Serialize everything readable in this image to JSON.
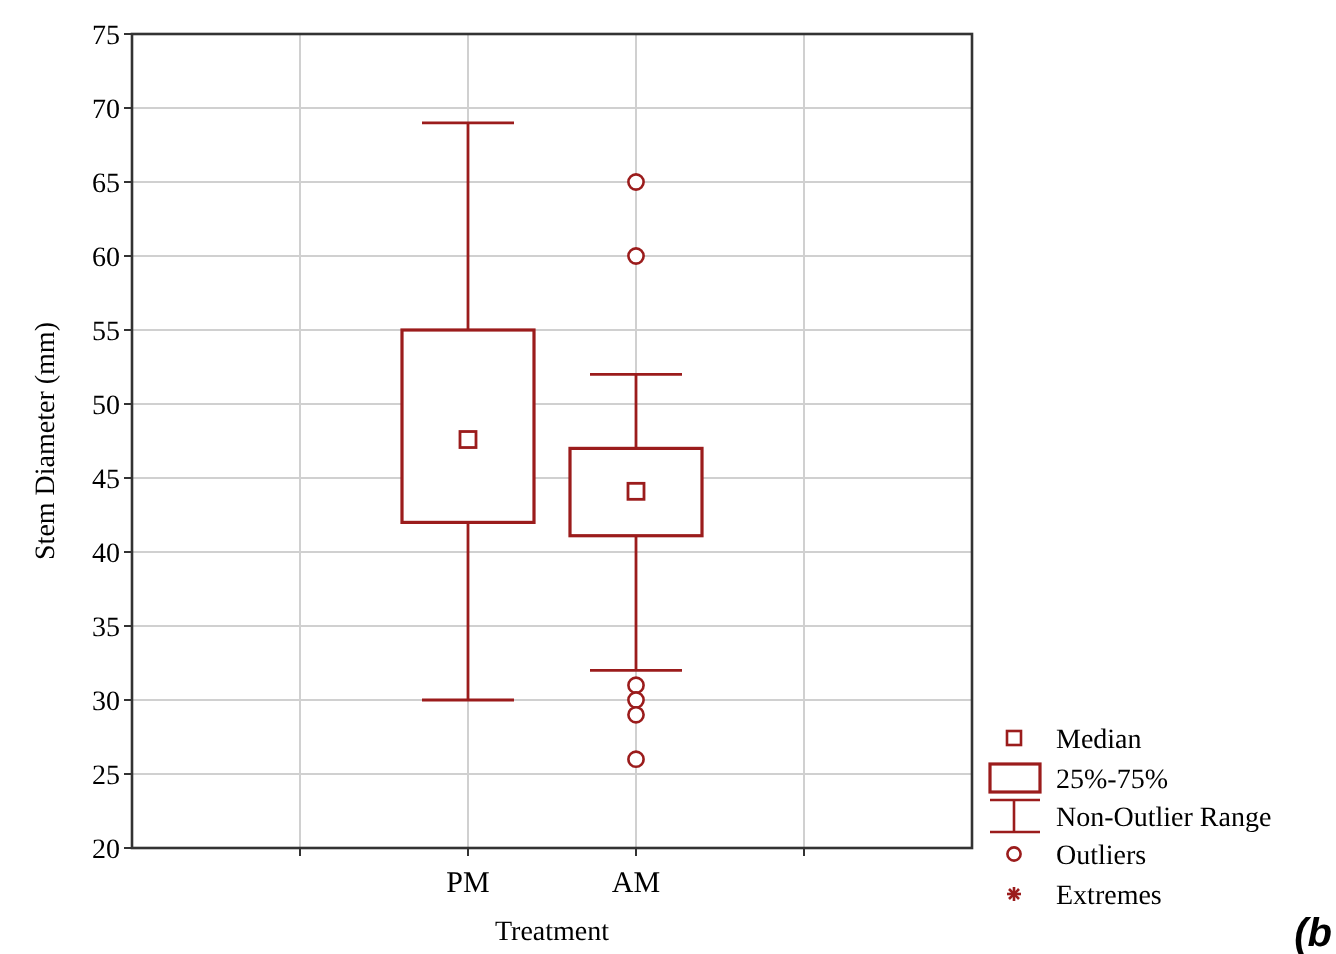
{
  "chart_data": {
    "type": "box",
    "xlabel": "Treatment",
    "ylabel": "Stem Diameter (mm)",
    "categories": [
      null,
      "PM",
      "AM",
      null
    ],
    "series": [
      {
        "color": "#9b1c1c",
        "boxes": [
          null,
          {
            "low": 30,
            "q1": 42,
            "median": 47.6,
            "q3": 55,
            "high": 69
          },
          {
            "low": 32,
            "q1": 41.1,
            "median": 44.1,
            "q3": 47,
            "high": 52,
            "outliers": [
              65,
              60,
              31,
              30,
              29,
              26
            ]
          },
          null
        ]
      }
    ],
    "ylim": [
      20,
      75
    ],
    "yticks": [
      20,
      25,
      30,
      35,
      40,
      45,
      50,
      55,
      60,
      65,
      70,
      75
    ],
    "grid": true,
    "marker": "square",
    "annotations": [
      "Median",
      "25%-75%",
      "Non-Outlier Range",
      "Outliers",
      "Extremes",
      "(b"
    ]
  }
}
